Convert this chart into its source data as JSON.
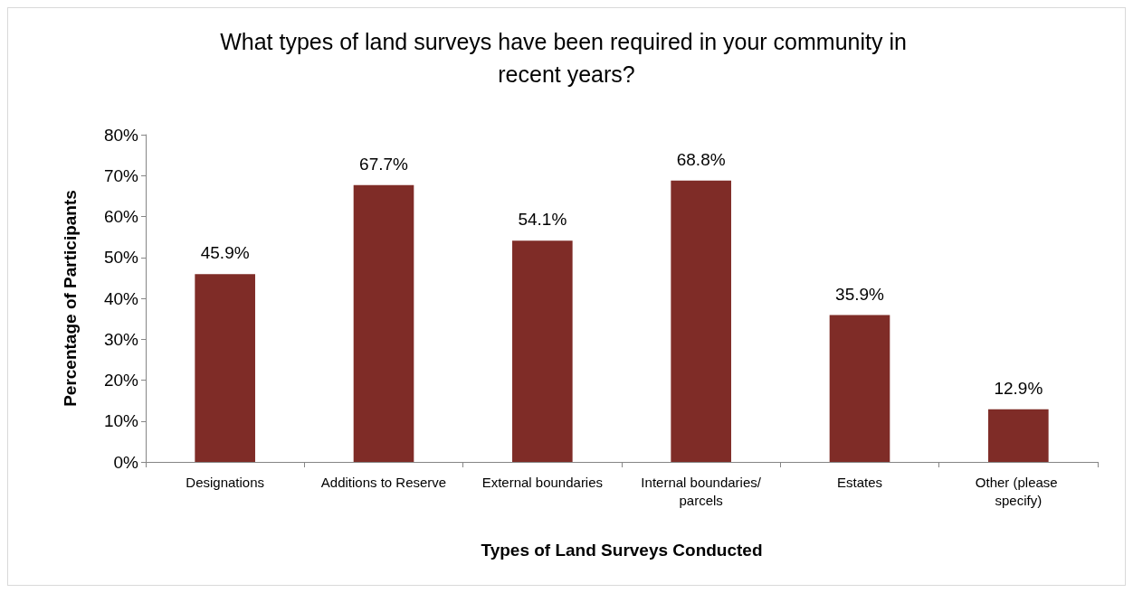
{
  "chart_data": {
    "type": "bar",
    "title": "What types of land surveys have been required in your community in recent years?",
    "xlabel": "Types of Land Surveys Conducted",
    "ylabel": "Percentage of Participants",
    "categories": [
      "Designations",
      "Additions to Reserve",
      "External boundaries",
      "Internal boundaries/parcels",
      "Estates",
      "Other (please specify)"
    ],
    "values": [
      45.9,
      67.7,
      54.1,
      68.8,
      35.9,
      12.9
    ],
    "value_labels": [
      "45.9%",
      "67.7%",
      "54.1%",
      "68.8%",
      "35.9%",
      "12.9%"
    ],
    "color": "#7f2c27",
    "ylim": [
      0,
      80
    ],
    "yticks": [
      {
        "value": 0,
        "label": "0%"
      },
      {
        "value": 10,
        "label": "10%"
      },
      {
        "value": 20,
        "label": "20%"
      },
      {
        "value": 30,
        "label": "30%"
      },
      {
        "value": 40,
        "label": "40%"
      },
      {
        "value": 50,
        "label": "50%"
      },
      {
        "value": 60,
        "label": "60%"
      },
      {
        "value": 70,
        "label": "70%"
      },
      {
        "value": 80,
        "label": "80%"
      }
    ],
    "grid": false
  }
}
